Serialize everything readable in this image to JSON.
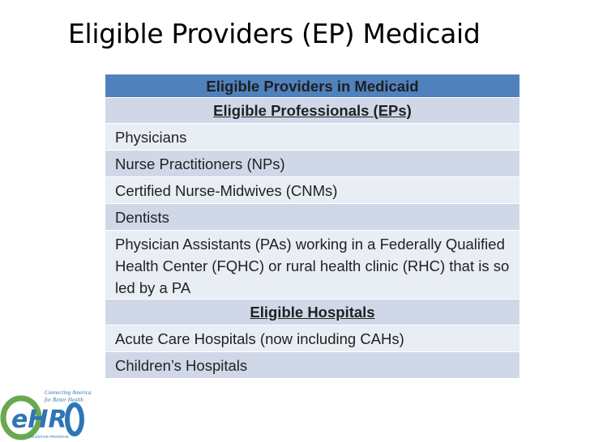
{
  "slide": {
    "title": "Eligible Providers (EP) Medicaid"
  },
  "table": {
    "header": "Eligible Providers in Medicaid",
    "section_professionals": "Eligible Professionals (EPs)",
    "professionals": [
      "Physicians",
      "Nurse Practitioners (NPs)",
      "Certified Nurse-Midwives (CNMs)",
      "Dentists",
      "Physician Assistants (PAs) working in a Federally Qualified Health Center (FQHC) or rural health clinic (RHC) that is so led by a PA"
    ],
    "section_hospitals": "Eligible Hospitals",
    "hospitals": [
      "Acute Care Hospitals (now including CAHs)",
      "Children’s Hospitals"
    ]
  },
  "logo": {
    "tagline_line1": "Connecting America",
    "tagline_line2": "for Better Health",
    "wordmark": "eHR",
    "subtext": "INCENTIVE PROGRAM"
  },
  "colors": {
    "header_blue": "#4f81bd",
    "row_dark": "#d0d8e8",
    "row_light": "#e9edf4",
    "logo_green": "#6aa84f",
    "logo_blue": "#2e75b6"
  }
}
